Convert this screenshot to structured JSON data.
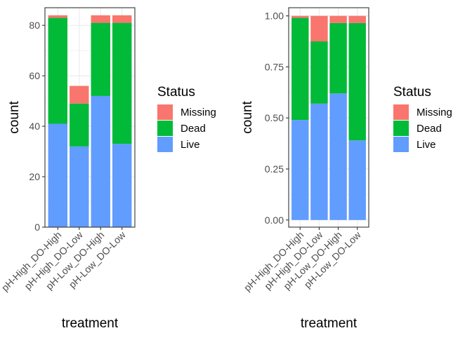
{
  "chart_data": [
    {
      "type": "bar",
      "stacked": true,
      "categories": [
        "pH-High_DO-High",
        "pH-High_DO-Low",
        "pH-Low_DO-High",
        "pH-Low_DO-Low"
      ],
      "series": [
        {
          "name": "Live",
          "values": [
            41,
            32,
            52,
            33
          ],
          "color": "#619CFF"
        },
        {
          "name": "Dead",
          "values": [
            42,
            17,
            29,
            48
          ],
          "color": "#00BA38"
        },
        {
          "name": "Missing",
          "values": [
            1,
            7,
            3,
            3
          ],
          "color": "#F8766D"
        }
      ],
      "xlabel": "treatment",
      "ylabel": "count",
      "ylim": [
        0,
        87
      ],
      "yticks": [
        0,
        20,
        40,
        60,
        80
      ],
      "ytick_labels": [
        "0",
        "20",
        "40",
        "60",
        "80"
      ],
      "grid": true,
      "legend": {
        "title": "Status",
        "placement": "right",
        "entries": [
          "Missing",
          "Dead",
          "Live"
        ]
      }
    },
    {
      "type": "bar",
      "stacked": true,
      "categories": [
        "pH-High_DO-High",
        "pH-High_DO-Low",
        "pH-Low_DO-High",
        "pH-Low_DO-Low"
      ],
      "series": [
        {
          "name": "Live",
          "values": [
            0.49,
            0.57,
            0.62,
            0.39
          ],
          "color": "#619CFF"
        },
        {
          "name": "Dead",
          "values": [
            0.5,
            0.305,
            0.345,
            0.575
          ],
          "color": "#00BA38"
        },
        {
          "name": "Missing",
          "values": [
            0.01,
            0.125,
            0.035,
            0.035
          ],
          "color": "#F8766D"
        }
      ],
      "xlabel": "treatment",
      "ylabel": "count",
      "ylim": [
        -0.035,
        1.04
      ],
      "yticks": [
        0,
        0.25,
        0.5,
        0.75,
        1.0
      ],
      "ytick_labels": [
        "0.00",
        "0.25",
        "0.50",
        "0.75",
        "1.00"
      ],
      "grid": true,
      "legend": {
        "title": "Status",
        "placement": "right",
        "entries": [
          "Missing",
          "Dead",
          "Live"
        ]
      }
    }
  ]
}
